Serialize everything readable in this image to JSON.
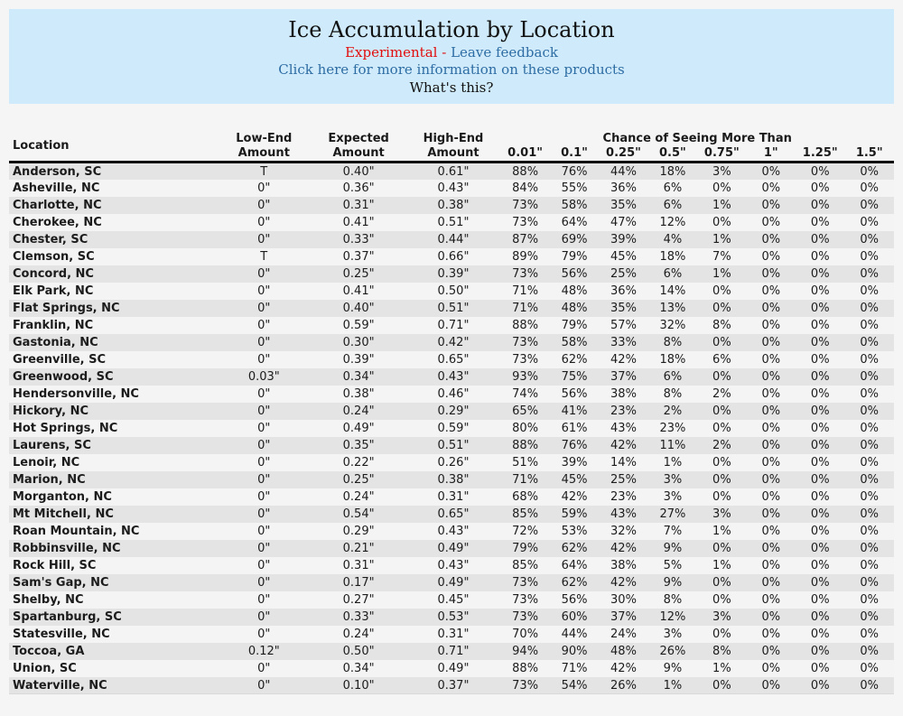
{
  "theme": {
    "page_bg": "#f5f5f5",
    "banner_bg": "#cfeafb",
    "experimental_color": "#e20e0e",
    "link_color": "#2e6da4",
    "text_dark": "#111111",
    "row_odd_bg": "#e4e4e4",
    "row_even_bg": "#f4f4f4"
  },
  "banner": {
    "title": "Ice Accumulation by Location",
    "experimental_label": "Experimental",
    "separator": "-",
    "feedback_link": "Leave feedback",
    "info_link": "Click here for more information on these products",
    "whats_this_link": "What's this?"
  },
  "table": {
    "columns": {
      "location": "Location",
      "low_end": "Low-End Amount",
      "expected": "Expected Amount",
      "high_end": "High-End Amount",
      "chance_group": "Chance of Seeing More Than",
      "thresholds": [
        "0.01\"",
        "0.1\"",
        "0.25\"",
        "0.5\"",
        "0.75\"",
        "1\"",
        "1.25\"",
        "1.5\""
      ]
    },
    "rows": [
      {
        "location": "Anderson, SC",
        "low_end": "T",
        "expected": "0.40\"",
        "high_end": "0.61\"",
        "chances": [
          "88%",
          "76%",
          "44%",
          "18%",
          "3%",
          "0%",
          "0%",
          "0%"
        ]
      },
      {
        "location": "Asheville, NC",
        "low_end": "0\"",
        "expected": "0.36\"",
        "high_end": "0.43\"",
        "chances": [
          "84%",
          "55%",
          "36%",
          "6%",
          "0%",
          "0%",
          "0%",
          "0%"
        ]
      },
      {
        "location": "Charlotte, NC",
        "low_end": "0\"",
        "expected": "0.31\"",
        "high_end": "0.38\"",
        "chances": [
          "73%",
          "58%",
          "35%",
          "6%",
          "1%",
          "0%",
          "0%",
          "0%"
        ]
      },
      {
        "location": "Cherokee, NC",
        "low_end": "0\"",
        "expected": "0.41\"",
        "high_end": "0.51\"",
        "chances": [
          "73%",
          "64%",
          "47%",
          "12%",
          "0%",
          "0%",
          "0%",
          "0%"
        ]
      },
      {
        "location": "Chester, SC",
        "low_end": "0\"",
        "expected": "0.33\"",
        "high_end": "0.44\"",
        "chances": [
          "87%",
          "69%",
          "39%",
          "4%",
          "1%",
          "0%",
          "0%",
          "0%"
        ]
      },
      {
        "location": "Clemson, SC",
        "low_end": "T",
        "expected": "0.37\"",
        "high_end": "0.66\"",
        "chances": [
          "89%",
          "79%",
          "45%",
          "18%",
          "7%",
          "0%",
          "0%",
          "0%"
        ]
      },
      {
        "location": "Concord, NC",
        "low_end": "0\"",
        "expected": "0.25\"",
        "high_end": "0.39\"",
        "chances": [
          "73%",
          "56%",
          "25%",
          "6%",
          "1%",
          "0%",
          "0%",
          "0%"
        ]
      },
      {
        "location": "Elk Park, NC",
        "low_end": "0\"",
        "expected": "0.41\"",
        "high_end": "0.50\"",
        "chances": [
          "71%",
          "48%",
          "36%",
          "14%",
          "0%",
          "0%",
          "0%",
          "0%"
        ]
      },
      {
        "location": "Flat Springs, NC",
        "low_end": "0\"",
        "expected": "0.40\"",
        "high_end": "0.51\"",
        "chances": [
          "71%",
          "48%",
          "35%",
          "13%",
          "0%",
          "0%",
          "0%",
          "0%"
        ]
      },
      {
        "location": "Franklin, NC",
        "low_end": "0\"",
        "expected": "0.59\"",
        "high_end": "0.71\"",
        "chances": [
          "88%",
          "79%",
          "57%",
          "32%",
          "8%",
          "0%",
          "0%",
          "0%"
        ]
      },
      {
        "location": "Gastonia, NC",
        "low_end": "0\"",
        "expected": "0.30\"",
        "high_end": "0.42\"",
        "chances": [
          "73%",
          "58%",
          "33%",
          "8%",
          "0%",
          "0%",
          "0%",
          "0%"
        ]
      },
      {
        "location": "Greenville, SC",
        "low_end": "0\"",
        "expected": "0.39\"",
        "high_end": "0.65\"",
        "chances": [
          "73%",
          "62%",
          "42%",
          "18%",
          "6%",
          "0%",
          "0%",
          "0%"
        ]
      },
      {
        "location": "Greenwood, SC",
        "low_end": "0.03\"",
        "expected": "0.34\"",
        "high_end": "0.43\"",
        "chances": [
          "93%",
          "75%",
          "37%",
          "6%",
          "0%",
          "0%",
          "0%",
          "0%"
        ]
      },
      {
        "location": "Hendersonville, NC",
        "low_end": "0\"",
        "expected": "0.38\"",
        "high_end": "0.46\"",
        "chances": [
          "74%",
          "56%",
          "38%",
          "8%",
          "2%",
          "0%",
          "0%",
          "0%"
        ]
      },
      {
        "location": "Hickory, NC",
        "low_end": "0\"",
        "expected": "0.24\"",
        "high_end": "0.29\"",
        "chances": [
          "65%",
          "41%",
          "23%",
          "2%",
          "0%",
          "0%",
          "0%",
          "0%"
        ]
      },
      {
        "location": "Hot Springs, NC",
        "low_end": "0\"",
        "expected": "0.49\"",
        "high_end": "0.59\"",
        "chances": [
          "80%",
          "61%",
          "43%",
          "23%",
          "0%",
          "0%",
          "0%",
          "0%"
        ]
      },
      {
        "location": "Laurens, SC",
        "low_end": "0\"",
        "expected": "0.35\"",
        "high_end": "0.51\"",
        "chances": [
          "88%",
          "76%",
          "42%",
          "11%",
          "2%",
          "0%",
          "0%",
          "0%"
        ]
      },
      {
        "location": "Lenoir, NC",
        "low_end": "0\"",
        "expected": "0.22\"",
        "high_end": "0.26\"",
        "chances": [
          "51%",
          "39%",
          "14%",
          "1%",
          "0%",
          "0%",
          "0%",
          "0%"
        ]
      },
      {
        "location": "Marion, NC",
        "low_end": "0\"",
        "expected": "0.25\"",
        "high_end": "0.38\"",
        "chances": [
          "71%",
          "45%",
          "25%",
          "3%",
          "0%",
          "0%",
          "0%",
          "0%"
        ]
      },
      {
        "location": "Morganton, NC",
        "low_end": "0\"",
        "expected": "0.24\"",
        "high_end": "0.31\"",
        "chances": [
          "68%",
          "42%",
          "23%",
          "3%",
          "0%",
          "0%",
          "0%",
          "0%"
        ]
      },
      {
        "location": "Mt Mitchell, NC",
        "low_end": "0\"",
        "expected": "0.54\"",
        "high_end": "0.65\"",
        "chances": [
          "85%",
          "59%",
          "43%",
          "27%",
          "3%",
          "0%",
          "0%",
          "0%"
        ]
      },
      {
        "location": "Roan Mountain, NC",
        "low_end": "0\"",
        "expected": "0.29\"",
        "high_end": "0.43\"",
        "chances": [
          "72%",
          "53%",
          "32%",
          "7%",
          "1%",
          "0%",
          "0%",
          "0%"
        ]
      },
      {
        "location": "Robbinsville, NC",
        "low_end": "0\"",
        "expected": "0.21\"",
        "high_end": "0.49\"",
        "chances": [
          "79%",
          "62%",
          "42%",
          "9%",
          "0%",
          "0%",
          "0%",
          "0%"
        ]
      },
      {
        "location": "Rock Hill, SC",
        "low_end": "0\"",
        "expected": "0.31\"",
        "high_end": "0.43\"",
        "chances": [
          "85%",
          "64%",
          "38%",
          "5%",
          "1%",
          "0%",
          "0%",
          "0%"
        ]
      },
      {
        "location": "Sam's Gap, NC",
        "low_end": "0\"",
        "expected": "0.17\"",
        "high_end": "0.49\"",
        "chances": [
          "73%",
          "62%",
          "42%",
          "9%",
          "0%",
          "0%",
          "0%",
          "0%"
        ]
      },
      {
        "location": "Shelby, NC",
        "low_end": "0\"",
        "expected": "0.27\"",
        "high_end": "0.45\"",
        "chances": [
          "73%",
          "56%",
          "30%",
          "8%",
          "0%",
          "0%",
          "0%",
          "0%"
        ]
      },
      {
        "location": "Spartanburg, SC",
        "low_end": "0\"",
        "expected": "0.33\"",
        "high_end": "0.53\"",
        "chances": [
          "73%",
          "60%",
          "37%",
          "12%",
          "3%",
          "0%",
          "0%",
          "0%"
        ]
      },
      {
        "location": "Statesville, NC",
        "low_end": "0\"",
        "expected": "0.24\"",
        "high_end": "0.31\"",
        "chances": [
          "70%",
          "44%",
          "24%",
          "3%",
          "0%",
          "0%",
          "0%",
          "0%"
        ]
      },
      {
        "location": "Toccoa, GA",
        "low_end": "0.12\"",
        "expected": "0.50\"",
        "high_end": "0.71\"",
        "chances": [
          "94%",
          "90%",
          "48%",
          "26%",
          "8%",
          "0%",
          "0%",
          "0%"
        ]
      },
      {
        "location": "Union, SC",
        "low_end": "0\"",
        "expected": "0.34\"",
        "high_end": "0.49\"",
        "chances": [
          "88%",
          "71%",
          "42%",
          "9%",
          "1%",
          "0%",
          "0%",
          "0%"
        ]
      },
      {
        "location": "Waterville, NC",
        "low_end": "0\"",
        "expected": "0.10\"",
        "high_end": "0.37\"",
        "chances": [
          "73%",
          "54%",
          "26%",
          "1%",
          "0%",
          "0%",
          "0%",
          "0%"
        ]
      }
    ]
  }
}
